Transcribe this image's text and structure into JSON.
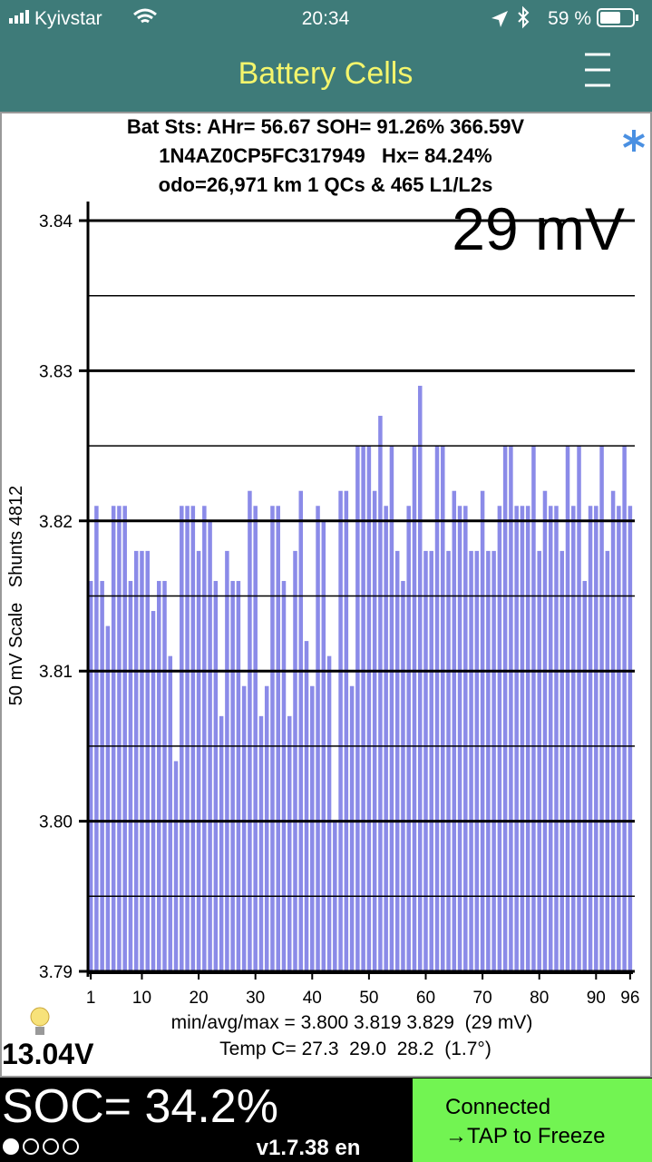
{
  "status_bar": {
    "carrier": "Kyivstar",
    "time": "20:34",
    "battery": "59 %"
  },
  "nav": {
    "title": "Battery Cells"
  },
  "header": {
    "lines": [
      "Bat Sts: AHr= 56.67 SOH= 91.26% 366.59V",
      "1N4AZ0CP5FC317949   Hx= 84.24%",
      "odo=26,971 km 1 QCs & 465 L1/L2s"
    ]
  },
  "chart_data": {
    "type": "bar",
    "annotation": "29 mV",
    "y_label": "50 mV Scale   Shunts 4812",
    "color": "#8b8be8",
    "categories": [
      1,
      null,
      null,
      null,
      null,
      null,
      null,
      null,
      null,
      10,
      null,
      null,
      null,
      null,
      null,
      null,
      null,
      null,
      null,
      20,
      null,
      null,
      null,
      null,
      null,
      null,
      null,
      null,
      null,
      30,
      null,
      null,
      null,
      null,
      null,
      null,
      null,
      null,
      null,
      40,
      null,
      null,
      null,
      null,
      null,
      null,
      null,
      null,
      null,
      50,
      null,
      null,
      null,
      null,
      null,
      null,
      null,
      null,
      null,
      60,
      null,
      null,
      null,
      null,
      null,
      null,
      null,
      null,
      null,
      70,
      null,
      null,
      null,
      null,
      null,
      null,
      null,
      null,
      null,
      80,
      null,
      null,
      null,
      null,
      null,
      null,
      null,
      null,
      null,
      90,
      null,
      null,
      null,
      null,
      null,
      96
    ],
    "values": [
      3.816,
      3.821,
      3.816,
      3.813,
      3.821,
      3.821,
      3.821,
      3.816,
      3.818,
      3.818,
      3.818,
      3.814,
      3.816,
      3.816,
      3.811,
      3.804,
      3.821,
      3.821,
      3.821,
      3.818,
      3.821,
      3.82,
      3.816,
      3.807,
      3.818,
      3.816,
      3.816,
      3.809,
      3.822,
      3.821,
      3.807,
      3.809,
      3.821,
      3.821,
      3.816,
      3.807,
      3.818,
      3.822,
      3.812,
      3.809,
      3.821,
      3.82,
      3.811,
      3.8,
      3.822,
      3.822,
      3.809,
      3.825,
      3.825,
      3.825,
      3.822,
      3.827,
      3.821,
      3.825,
      3.818,
      3.816,
      3.821,
      3.825,
      3.829,
      3.818,
      3.818,
      3.825,
      3.825,
      3.818,
      3.822,
      3.821,
      3.821,
      3.818,
      3.818,
      3.822,
      3.818,
      3.818,
      3.821,
      3.825,
      3.825,
      3.821,
      3.821,
      3.821,
      3.825,
      3.818,
      3.822,
      3.821,
      3.821,
      3.818,
      3.825,
      3.821,
      3.825,
      3.816,
      3.821,
      3.821,
      3.825,
      3.818,
      3.822,
      3.821,
      3.825,
      3.821
    ],
    "ylim": [
      3.79,
      3.84
    ],
    "yticks": [
      3.79,
      {
        "value": 3.8,
        "label": "3.80"
      },
      3.81,
      3.82,
      3.83,
      3.84
    ],
    "minor_yticks": [
      3.795,
      3.805,
      3.815,
      3.825,
      3.835
    ],
    "grid": true
  },
  "footer": {
    "stats": [
      "min/avg/max = 3.800 3.819 3.829  (29 mV)",
      "Temp C= 27.3  29.0  28.2  (1.7°)"
    ],
    "aux_voltage": "13.04V",
    "soc": "SOC= 34.2%",
    "version": "v1.7.38 en",
    "connection": [
      "Connected",
      "→TAP to Freeze"
    ]
  }
}
